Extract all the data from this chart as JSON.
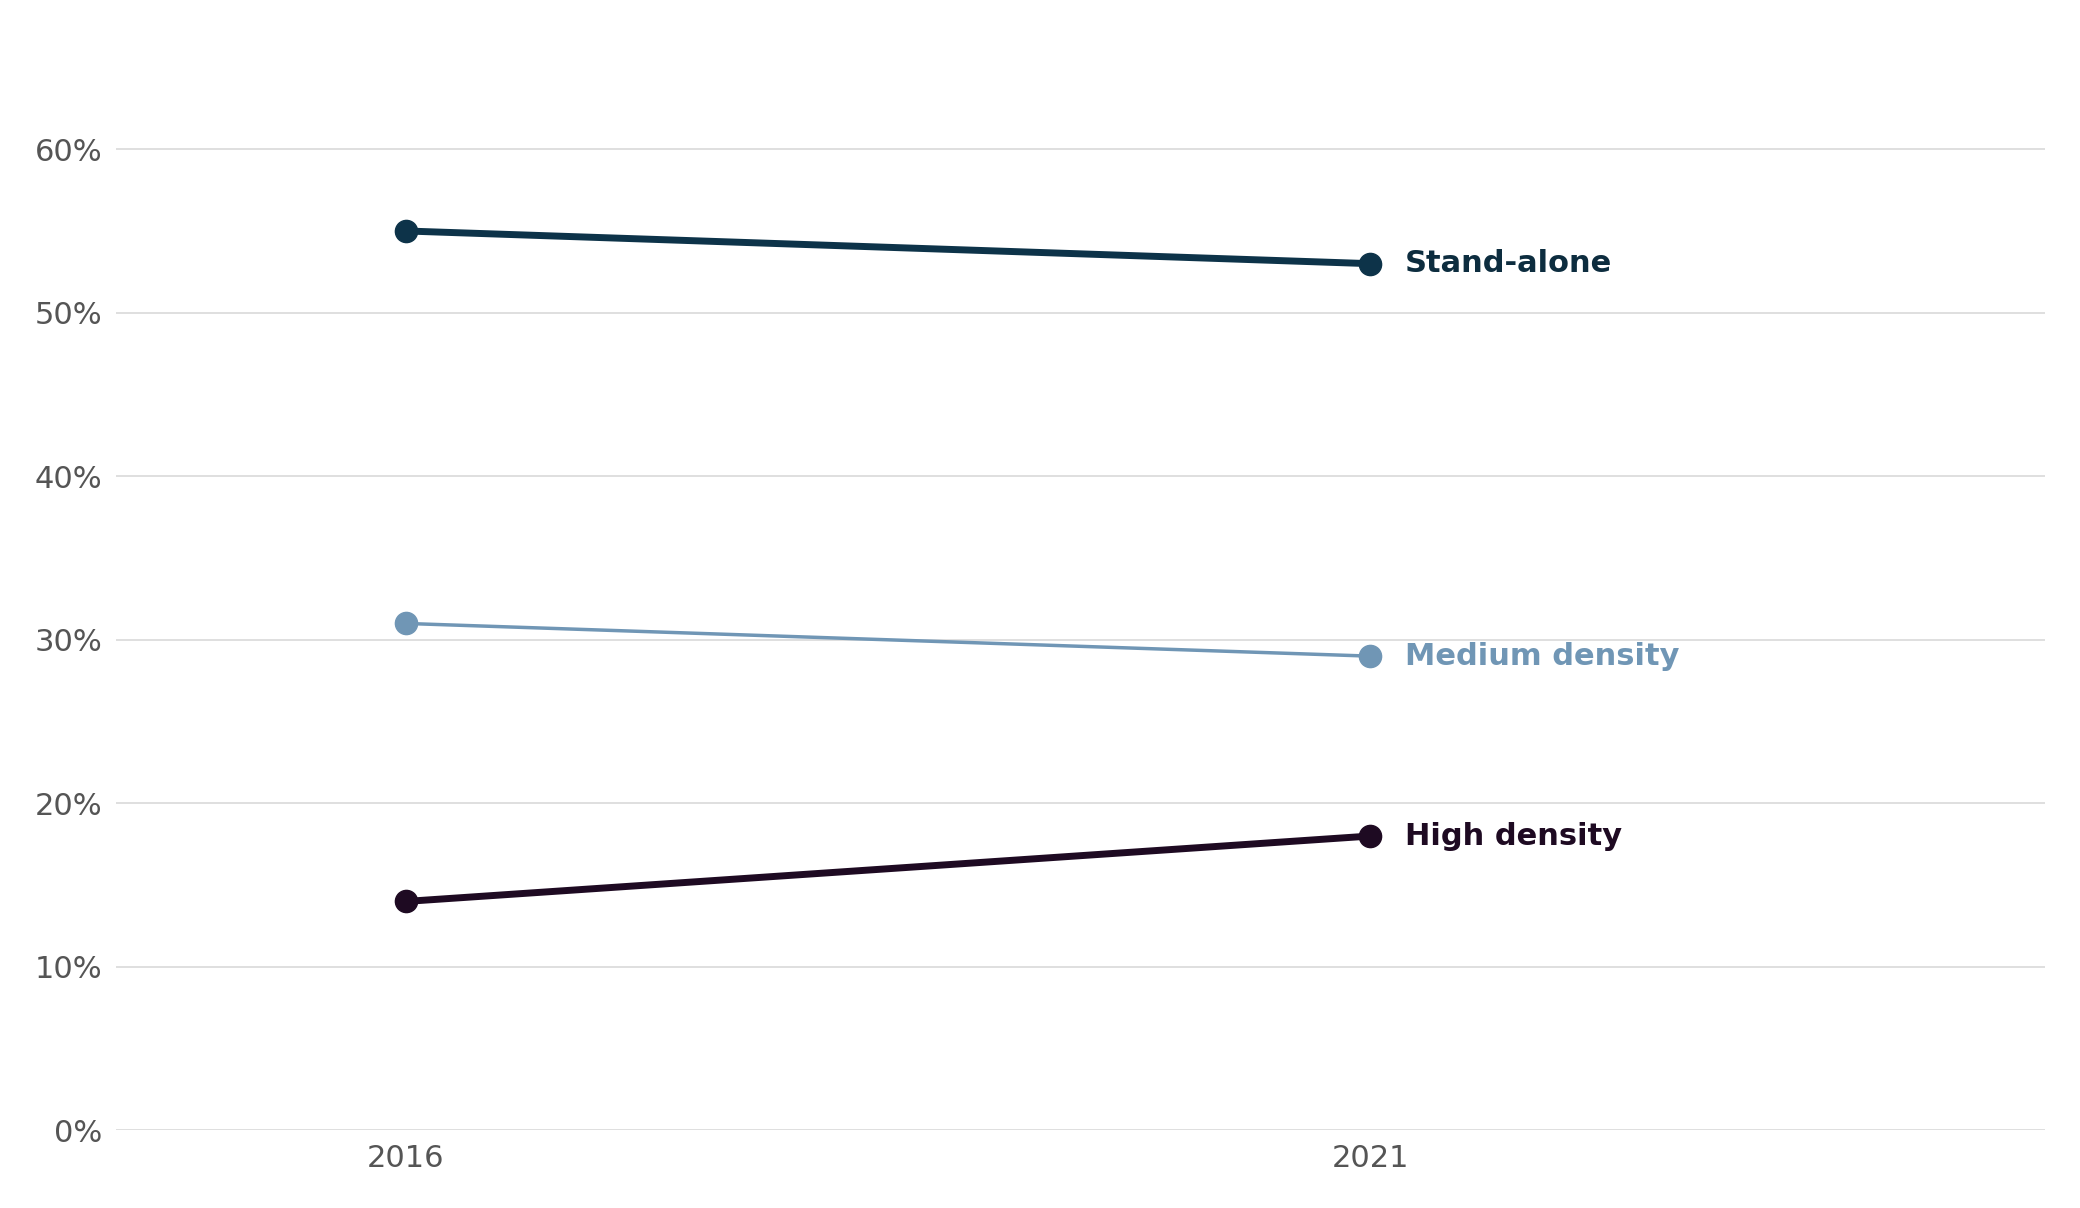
{
  "years": [
    2016,
    2021
  ],
  "series": [
    {
      "label": "Stand-alone",
      "values": [
        0.55,
        0.53
      ],
      "color": "#0d3349",
      "label_color": "#0d2d3f",
      "marker": "o",
      "markersize": 16,
      "linewidth": 5.0,
      "fontweight": "bold"
    },
    {
      "label": "Medium density",
      "values": [
        0.31,
        0.29
      ],
      "color": "#7096b5",
      "label_color": "#7096b5",
      "marker": "o",
      "markersize": 16,
      "linewidth": 2.5,
      "fontweight": "bold"
    },
    {
      "label": "High density",
      "values": [
        0.14,
        0.18
      ],
      "color": "#1e0a22",
      "label_color": "#1e0a22",
      "marker": "o",
      "markersize": 16,
      "linewidth": 5.0,
      "fontweight": "bold"
    }
  ],
  "ylim": [
    0,
    0.67
  ],
  "yticks": [
    0.0,
    0.1,
    0.2,
    0.3,
    0.4,
    0.5,
    0.6
  ],
  "ytick_labels": [
    "0%",
    "10%",
    "20%",
    "30%",
    "40%",
    "50%",
    "60%"
  ],
  "xticks": [
    2016,
    2021
  ],
  "xlim": [
    2014.5,
    2024.5
  ],
  "background_color": "#ffffff",
  "grid_color": "#d9d9d9",
  "tick_fontsize": 22,
  "label_fontsize": 22
}
